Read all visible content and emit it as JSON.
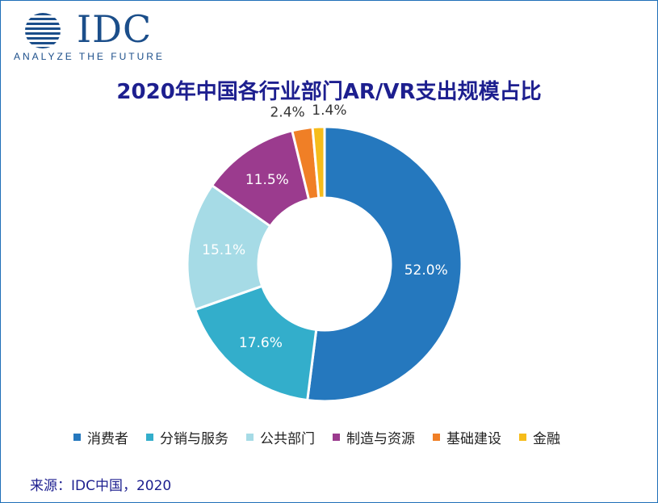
{
  "logo": {
    "text": "IDC",
    "tagline": "ANALYZE THE FUTURE",
    "icon": "globe-icon"
  },
  "chart_data": {
    "type": "pie",
    "title": "2020年中国各行业部门AR/VR支出规模占比",
    "donut": true,
    "categories": [
      "消费者",
      "分销与服务",
      "公共部门",
      "制造与资源",
      "基础建设",
      "金融"
    ],
    "values": [
      52.0,
      17.6,
      15.1,
      11.5,
      2.4,
      1.4
    ],
    "labels": [
      "52.0%",
      "17.6%",
      "15.1%",
      "11.5%",
      "2.4%",
      "1.4%"
    ],
    "colors": [
      "#2578be",
      "#33aecb",
      "#a6dbe6",
      "#9b3b8e",
      "#f07f26",
      "#f6bc1a"
    ],
    "legend_position": "bottom",
    "start": "top",
    "direction": "clockwise"
  },
  "source": "来源：IDC中国，2020"
}
